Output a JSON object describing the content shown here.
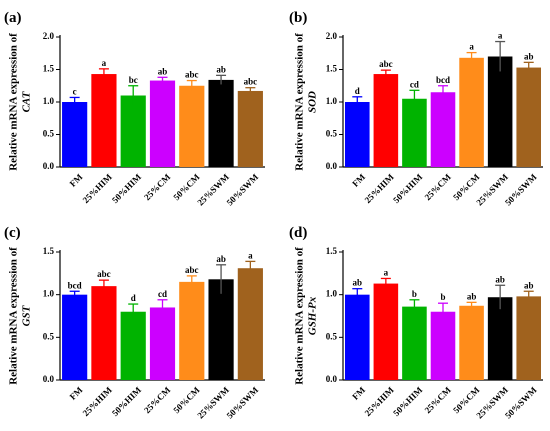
{
  "chart_data": [
    {
      "type": "bar",
      "panel_label": "(a)",
      "ylabel_line1": "Relative mRNA expression of",
      "ylabel_gene": "CAT",
      "categories": [
        "FM",
        "25%HIM",
        "50%HIM",
        "25%CM",
        "50%CM",
        "25%SWM",
        "50%SWM"
      ],
      "values": [
        1.0,
        1.43,
        1.1,
        1.33,
        1.25,
        1.34,
        1.17
      ],
      "errors": [
        0.07,
        0.08,
        0.15,
        0.05,
        0.08,
        0.07,
        0.05
      ],
      "significance": [
        "c",
        "a",
        "bc",
        "ab",
        "abc",
        "ab",
        "abc"
      ],
      "ylim": [
        0,
        2.0
      ],
      "yticks": [
        0.0,
        0.5,
        1.0,
        1.5,
        2.0
      ],
      "ytick_labels": [
        "0.0",
        "0.5",
        "1.0",
        "1.5",
        "2.0"
      ]
    },
    {
      "type": "bar",
      "panel_label": "(b)",
      "ylabel_line1": "Relative mRNA expression of",
      "ylabel_gene": "SOD",
      "categories": [
        "FM",
        "25%HIM",
        "50%HIM",
        "25%CM",
        "50%CM",
        "25%SWM",
        "50%SWM"
      ],
      "values": [
        1.0,
        1.43,
        1.05,
        1.15,
        1.68,
        1.7,
        1.53
      ],
      "errors": [
        0.08,
        0.06,
        0.13,
        0.1,
        0.08,
        0.23,
        0.08
      ],
      "significance": [
        "d",
        "abc",
        "cd",
        "bcd",
        "a",
        "a",
        "ab"
      ],
      "ylim": [
        0,
        2.0
      ],
      "yticks": [
        0.0,
        0.5,
        1.0,
        1.5,
        2.0
      ],
      "ytick_labels": [
        "0.0",
        "0.5",
        "1.0",
        "1.5",
        "2.0"
      ]
    },
    {
      "type": "bar",
      "panel_label": "(c)",
      "ylabel_line1": "Relative mRNA expression of",
      "ylabel_gene": "GST",
      "categories": [
        "FM",
        "25%HIM",
        "50%HIM",
        "25%CM",
        "50%CM",
        "25%SWM",
        "50%SWM"
      ],
      "values": [
        1.0,
        1.1,
        0.8,
        0.85,
        1.15,
        1.18,
        1.31
      ],
      "errors": [
        0.04,
        0.07,
        0.09,
        0.09,
        0.07,
        0.17,
        0.08
      ],
      "significance": [
        "bcd",
        "abc",
        "d",
        "cd",
        "abc",
        "ab",
        "a"
      ],
      "ylim": [
        0,
        1.5
      ],
      "yticks": [
        0.0,
        0.5,
        1.0,
        1.5
      ],
      "ytick_labels": [
        "0.0",
        "0.5",
        "1.0",
        "1.5"
      ]
    },
    {
      "type": "bar",
      "panel_label": "(d)",
      "ylabel_line1": "Relative mRNA expression of",
      "ylabel_gene": "GSH-Px",
      "categories": [
        "FM",
        "25%HIM",
        "50%HIM",
        "25%CM",
        "50%CM",
        "25%SWM",
        "50%SWM"
      ],
      "values": [
        1.0,
        1.13,
        0.86,
        0.8,
        0.87,
        0.97,
        0.98
      ],
      "errors": [
        0.07,
        0.06,
        0.08,
        0.1,
        0.04,
        0.14,
        0.06
      ],
      "significance": [
        "ab",
        "a",
        "b",
        "b",
        "ab",
        "ab",
        "ab"
      ],
      "ylim": [
        0,
        1.5
      ],
      "yticks": [
        0.0,
        0.5,
        1.0,
        1.5
      ],
      "ytick_labels": [
        "0.0",
        "0.5",
        "1.0",
        "1.5"
      ]
    }
  ],
  "colors": {
    "bars": [
      "#0000ff",
      "#ff0000",
      "#00b300",
      "#cc00ff",
      "#ff8c1a",
      "#000000",
      "#a0621e"
    ],
    "axis": "#000000"
  }
}
